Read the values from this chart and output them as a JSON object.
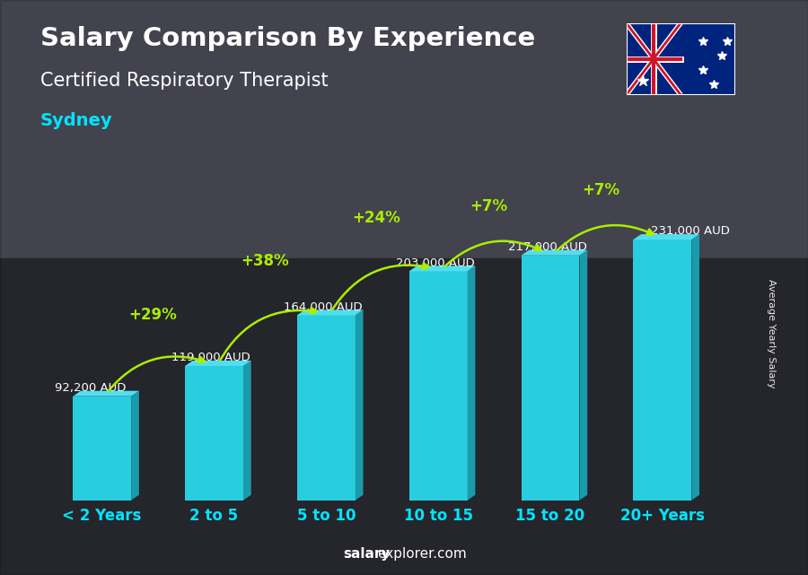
{
  "categories": [
    "< 2 Years",
    "2 to 5",
    "5 to 10",
    "10 to 15",
    "15 to 20",
    "20+ Years"
  ],
  "values": [
    92200,
    119000,
    164000,
    203000,
    217000,
    231000
  ],
  "value_labels": [
    "92,200 AUD",
    "119,000 AUD",
    "164,000 AUD",
    "203,000 AUD",
    "217,000 AUD",
    "231,000 AUD"
  ],
  "pct_labels": [
    "+29%",
    "+38%",
    "+24%",
    "+7%",
    "+7%"
  ],
  "title_line1": "Salary Comparison By Experience",
  "title_line2": "Certified Respiratory Therapist",
  "city": "Sydney",
  "ylabel": "Average Yearly Salary",
  "footer_bold": "salary",
  "footer_normal": "explorer.com",
  "bar_color_face": "#29cde0",
  "bar_color_dark": "#1a9aaa",
  "bar_color_top": "#50dff0",
  "bg_color": "#606070",
  "text_color_white": "#ffffff",
  "text_color_cyan": "#00e5ff",
  "text_color_green": "#aaee00",
  "ylim": [
    0,
    265000
  ],
  "flag_bg": "#003087",
  "flag_red": "#cc0000",
  "flag_white": "#ffffff"
}
